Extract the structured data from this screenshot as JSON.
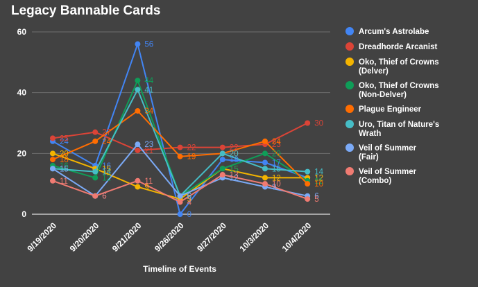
{
  "chart_data": {
    "type": "line",
    "title": "Legacy Bannable Cards",
    "xlabel": "Timeline of Events",
    "ylabel": "",
    "ylim": [
      0,
      60
    ],
    "yticks": [
      0,
      20,
      40,
      60
    ],
    "grid": true,
    "legend_position": "right",
    "categories": [
      "9/19/2020",
      "9/20/2020",
      "9/21/2020",
      "9/26/2020",
      "9/27/2020",
      "10/3/2020",
      "10/4/2020"
    ],
    "series": [
      {
        "name": "Arcum's Astrolabe",
        "color": "#4285f4",
        "values": [
          24,
          16,
          56,
          0,
          18,
          17,
          12
        ]
      },
      {
        "name": "Dreadhorde Arcanist",
        "color": "#db4437",
        "values": [
          25,
          27,
          21,
          22,
          22,
          23,
          30
        ]
      },
      {
        "name": "Oko, Thief of Crowns (Delver)",
        "color": "#f4b400",
        "values": [
          20,
          15,
          9,
          5,
          15,
          12,
          12
        ]
      },
      {
        "name": "Oko, Thief of Crowns (Non-Delver)",
        "color": "#0f9d58",
        "values": [
          16,
          12,
          44,
          6,
          15,
          20,
          11
        ]
      },
      {
        "name": "Plague Engineer",
        "color": "#ff6d01",
        "values": [
          18,
          24,
          34,
          19,
          20,
          24,
          10
        ]
      },
      {
        "name": "Uro, Titan of Nature's Wrath",
        "color": "#46bdc6",
        "values": [
          15,
          14,
          41,
          6,
          20,
          15,
          14
        ]
      },
      {
        "name": "Veil of Summer (Fair)",
        "color": "#7baaf7",
        "values": [
          15,
          6,
          23,
          6,
          12,
          9,
          6
        ]
      },
      {
        "name": "Veil of Summer (Combo)",
        "color": "#f07b72",
        "values": [
          11,
          6,
          11,
          4,
          13,
          10,
          5
        ]
      }
    ]
  }
}
